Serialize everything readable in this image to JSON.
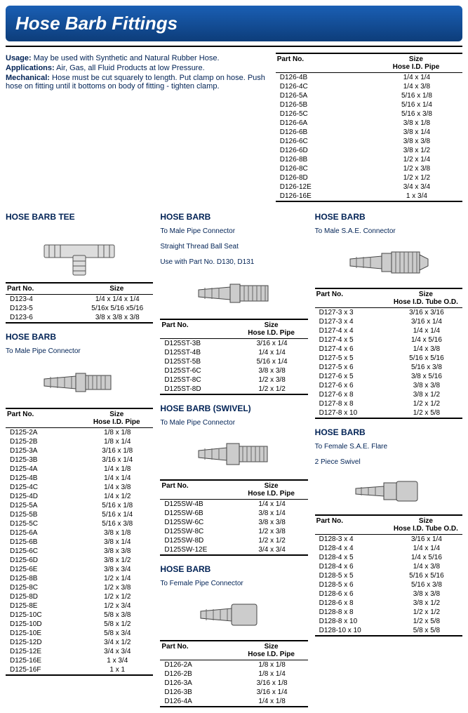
{
  "banner": "Hose Barb Fittings",
  "intro": {
    "usage_label": "Usage:",
    "usage_text": " May be used with Synthetic and Natural Rubber Hose.",
    "apps_label": "Applications:",
    "apps_text": " Air, Gas, all Fluid Products at low Pressure.",
    "mech_label": "Mechanical:",
    "mech_text": "  Hose must be cut  squarely to length. Put clamp on hose. Push hose on fitting until it bottoms on body of fitting - tighten clamp."
  },
  "hdr": {
    "part": "Part No.",
    "size": "Size",
    "size_hose_pipe": "Size\nHose I.D. Pipe",
    "size_hose_tube": "Size\nHose I.D. Tube O.D."
  },
  "sec": {
    "tee_title": "HOSE BARB TEE",
    "male_title": "HOSE BARB",
    "male_sub": "To Male Pipe Connector",
    "straight_title": "HOSE BARB",
    "straight_sub1": "To Male Pipe Connector",
    "straight_sub2": "Straight Thread Ball Seat",
    "straight_sub3": "Use with Part No. D130, D131",
    "swivel_title": "HOSE BARB (SWIVEL)",
    "swivel_sub": "To Male Pipe Connector",
    "female_title": "HOSE BARB",
    "female_sub": "To Female Pipe Connector",
    "sae_title": "HOSE BARB",
    "sae_sub": "To Male S.A.E. Connector",
    "flare_title": "HOSE BARB",
    "flare_sub1": "To Female S.A.E. Flare",
    "flare_sub2": "2 Piece Swivel"
  },
  "tables": {
    "tee": [
      [
        "D123-4",
        "1/4 x 1/4 x 1/4"
      ],
      [
        "D123-5",
        "5/16x 5/16 x5/16"
      ],
      [
        "D123-6",
        "3/8 x 3/8 x 3/8"
      ]
    ],
    "male": [
      [
        "D125-2A",
        "1/8 x 1/8"
      ],
      [
        "D125-2B",
        "1/8 x 1/4"
      ],
      [
        "D125-3A",
        "3/16 x 1/8"
      ],
      [
        "D125-3B",
        "3/16 x 1/4"
      ],
      [
        "D125-4A",
        "1/4 x 1/8"
      ],
      [
        "D125-4B",
        "1/4 x 1/4"
      ],
      [
        "D125-4C",
        "1/4 x 3/8"
      ],
      [
        "D125-4D",
        "1/4 x 1/2"
      ],
      [
        "D125-5A",
        "5/16 x 1/8"
      ],
      [
        "D125-5B",
        "5/16 x 1/4"
      ],
      [
        "D125-5C",
        "5/16 x 3/8"
      ],
      [
        "D125-6A",
        "3/8 x 1/8"
      ],
      [
        "D125-6B",
        "3/8 x 1/4"
      ],
      [
        "D125-6C",
        "3/8 x 3/8"
      ],
      [
        "D125-6D",
        "3/8 x 1/2"
      ],
      [
        "D125-6E",
        "3/8 x 3/4"
      ],
      [
        "D125-8B",
        "1/2 x 1/4"
      ],
      [
        "D125-8C",
        "1/2 x 3/8"
      ],
      [
        "D125-8D",
        "1/2 x 1/2"
      ],
      [
        "D125-8E",
        "1/2 x 3/4"
      ],
      [
        "D125-10C",
        "5/8 x 3/8"
      ],
      [
        "D125-10D",
        "5/8 x 1/2"
      ],
      [
        "D125-10E",
        "5/8 x 3/4"
      ],
      [
        "D125-12D",
        "3/4 x 1/2"
      ],
      [
        "D125-12E",
        "3/4 x 3/4"
      ],
      [
        "D125-16E",
        "1 x 3/4"
      ],
      [
        "D125-16F",
        "1 x 1"
      ]
    ],
    "straight": [
      [
        "D125ST-3B",
        "3/16 x 1/4"
      ],
      [
        "D125ST-4B",
        "1/4 x 1/4"
      ],
      [
        "D125ST-5B",
        "5/16 x 1/4"
      ],
      [
        "D125ST-6C",
        "3/8 x 3/8"
      ],
      [
        "D125ST-8C",
        "1/2 x 3/8"
      ],
      [
        "D125ST-8D",
        "1/2 x 1/2"
      ]
    ],
    "swivel": [
      [
        "D125SW-4B",
        "1/4 x 1/4"
      ],
      [
        "D125SW-6B",
        "3/8 x 1/4"
      ],
      [
        "D125SW-6C",
        "3/8 x 3/8"
      ],
      [
        "D125SW-8C",
        "1/2 x 3/8"
      ],
      [
        "D125SW-8D",
        "1/2 x 1/2"
      ],
      [
        "D125SW-12E",
        "3/4 x 3/4"
      ]
    ],
    "female": [
      [
        "D126-2A",
        "1/8  x  1/8"
      ],
      [
        "D126-2B",
        "1/8  x  1/4"
      ],
      [
        "D126-3A",
        "3/16 x  1/8"
      ],
      [
        "D126-3B",
        "3/16 x  1/4"
      ],
      [
        "D126-4A",
        "1/4  x  1/8"
      ]
    ],
    "female2": [
      [
        "D126-4B",
        "1/4  x  1/4"
      ],
      [
        "D126-4C",
        "1/4  x  3/8"
      ],
      [
        "D126-5A",
        "5/16  x  1/8"
      ],
      [
        "D126-5B",
        "5/16  x  1/4"
      ],
      [
        "D126-5C",
        "5/16  x  3/8"
      ],
      [
        "D126-6A",
        "3/8  x  1/8"
      ],
      [
        "D126-6B",
        "3/8  x  1/4"
      ],
      [
        "D126-6C",
        "3/8  x  3/8"
      ],
      [
        "D126-6D",
        "3/8  x  1/2"
      ],
      [
        "D126-8B",
        "1/2  x  1/4"
      ],
      [
        "D126-8C",
        "1/2  x  3/8"
      ],
      [
        "D126-8D",
        "1/2  x  1/2"
      ],
      [
        "D126-12E",
        "3/4  x  3/4"
      ],
      [
        "D126-16E",
        "1  x  3/4"
      ]
    ],
    "sae": [
      [
        "D127-3 x 3",
        "3/16 x 3/16"
      ],
      [
        "D127-3 x 4",
        "3/16 x 1/4"
      ],
      [
        "D127-4 x 4",
        "1/4 x 1/4"
      ],
      [
        "D127-4 x 5",
        "1/4 x 5/16"
      ],
      [
        "D127-4 x 6",
        "1/4 x 3/8"
      ],
      [
        "D127-5 x 5",
        "5/16 x 5/16"
      ],
      [
        "D127-5 x 6",
        "5/16 x 3/8"
      ],
      [
        "D127-6 x 5",
        "3/8 x 5/16"
      ],
      [
        "D127-6 x 6",
        "3/8 x 3/8"
      ],
      [
        "D127-6 x 8",
        "3/8 x 1/2"
      ],
      [
        "D127-8 x 8",
        "1/2 x 1/2"
      ],
      [
        "D127-8 x 10",
        "1/2 x 5/8"
      ]
    ],
    "flare": [
      [
        "D128-3 x 4",
        "3/16 x 1/4"
      ],
      [
        "D128-4 x 4",
        "1/4 x 1/4"
      ],
      [
        "D128-4 x 5",
        "1/4 x 5/16"
      ],
      [
        "D128-4 x 6",
        "1/4 x 3/8"
      ],
      [
        "D128-5 x 5",
        "5/16 x 5/16"
      ],
      [
        "D128-5 x 6",
        "5/16 x 3/8"
      ],
      [
        "D128-6 x 6",
        "3/8 x 3/8"
      ],
      [
        "D128-6 x 8",
        "3/8 x 1/2"
      ],
      [
        "D128-8 x 8",
        "1/2 x 1/2"
      ],
      [
        "D128-8 x 10",
        "1/2 x 5/8"
      ],
      [
        "D128-10 x 10",
        "5/8 x 5/8"
      ]
    ]
  }
}
